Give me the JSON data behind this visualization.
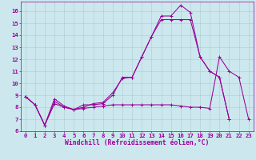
{
  "xlabel": "Windchill (Refroidissement éolien,°C)",
  "background_color": "#cce8ee",
  "grid_color": "#aacccc",
  "line_color": "#990099",
  "xlim": [
    -0.5,
    23.5
  ],
  "ylim": [
    6,
    16.8
  ],
  "xticks": [
    0,
    1,
    2,
    3,
    4,
    5,
    6,
    7,
    8,
    9,
    10,
    11,
    12,
    13,
    14,
    15,
    16,
    17,
    18,
    19,
    20,
    21,
    22,
    23
  ],
  "yticks": [
    6,
    7,
    8,
    9,
    10,
    11,
    12,
    13,
    14,
    15,
    16
  ],
  "line1_x": [
    0,
    1,
    2,
    3,
    4,
    5,
    6,
    7,
    8,
    9,
    10,
    11,
    12,
    13,
    14,
    15,
    16,
    17,
    18,
    19,
    20,
    21
  ],
  "line1_y": [
    8.9,
    8.2,
    6.5,
    8.7,
    8.1,
    7.8,
    8.2,
    8.2,
    8.3,
    9.0,
    10.5,
    10.5,
    12.2,
    13.9,
    15.6,
    15.6,
    16.5,
    15.9,
    12.2,
    11.0,
    10.5,
    7.0
  ],
  "line2_x": [
    0,
    1,
    2,
    3,
    4,
    5,
    6,
    7,
    8,
    9,
    10,
    11,
    12,
    13,
    14,
    15,
    16,
    17,
    18,
    19,
    20,
    21
  ],
  "line2_y": [
    8.9,
    8.2,
    6.5,
    8.3,
    8.0,
    7.8,
    8.0,
    8.3,
    8.4,
    9.2,
    10.4,
    10.5,
    12.2,
    13.9,
    15.3,
    15.3,
    15.3,
    15.3,
    12.2,
    11.0,
    10.5,
    7.0
  ],
  "line3_x": [
    0,
    1,
    2,
    3,
    4,
    5,
    6,
    7,
    8,
    9,
    10,
    11,
    12,
    13,
    14,
    15,
    16,
    17,
    18,
    19,
    20,
    21,
    22,
    23
  ],
  "line3_y": [
    8.9,
    8.2,
    6.5,
    8.5,
    8.0,
    7.8,
    7.9,
    8.0,
    8.1,
    8.2,
    8.2,
    8.2,
    8.2,
    8.2,
    8.2,
    8.2,
    8.1,
    8.0,
    8.0,
    7.9,
    12.2,
    11.0,
    10.5,
    7.0
  ],
  "font_family": "monospace",
  "tick_fontsize": 5.2,
  "xlabel_fontsize": 5.8
}
